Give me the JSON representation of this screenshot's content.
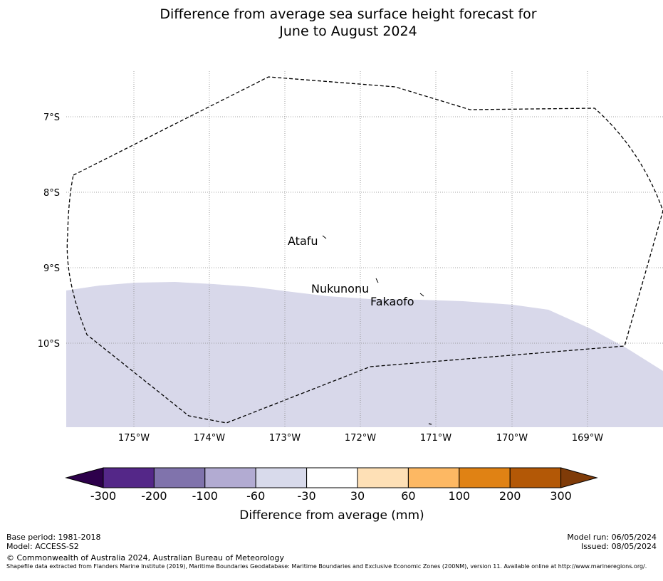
{
  "title": {
    "line1": "Difference from average sea surface height forecast for",
    "line2": "June to August 2024"
  },
  "map": {
    "latitude_labels": [
      "7°S",
      "8°S",
      "9°S",
      "10°S"
    ],
    "longitude_labels": [
      "175°W",
      "174°W",
      "173°W",
      "172°W",
      "171°W",
      "170°W",
      "169°W"
    ],
    "places": [
      {
        "name": "Atafu"
      },
      {
        "name": "Nukunonu"
      },
      {
        "name": "Fakaofo"
      }
    ],
    "shaded_category": "-60 to -30",
    "shading_color": "#d8d8ea",
    "eez_boundary_style": "dashed"
  },
  "colorbar": {
    "ticks": [
      "-300",
      "-200",
      "-100",
      "-60",
      "-30",
      "30",
      "60",
      "100",
      "200",
      "300"
    ],
    "colors": [
      "#2d004b",
      "#542788",
      "#8073ac",
      "#b2abd2",
      "#d8daeb",
      "#ffffff",
      "#fee0b6",
      "#fdb863",
      "#e08214",
      "#b35806",
      "#7f3b08"
    ],
    "label": "Difference from average (mm)"
  },
  "footer": {
    "base_period": "Base period: 1981-2018",
    "model": "Model: ACCESS-S2",
    "model_run": "Model run: 06/05/2024",
    "issued": "Issued: 08/05/2024",
    "copyright": "© Commonwealth of Australia 2024, Australian Bureau of Meteorology",
    "shapefile_note": "Shapefile data extracted from Flanders Marine Institute (2019), Maritime Boundaries Geodatabase: Maritime Boundaries and Exclusive Economic Zones (200NM), version 11. Available online at http://www.marineregions.org/."
  }
}
